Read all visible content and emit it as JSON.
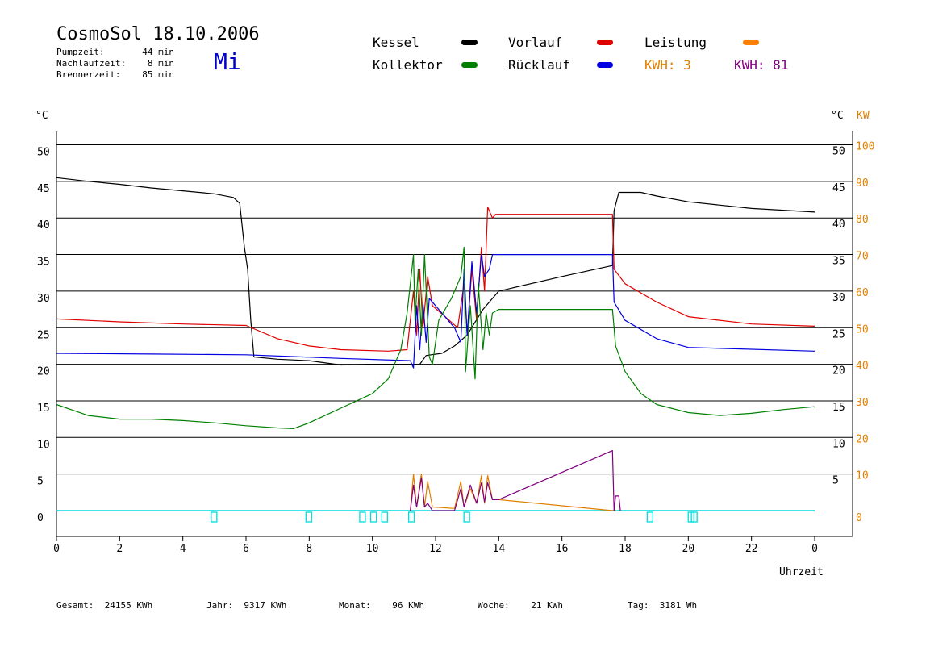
{
  "header": {
    "title": "CosmoSol 18.10.2006",
    "day": "Mi",
    "stats": [
      {
        "label": "Pumpzeit:",
        "value": "44 min"
      },
      {
        "label": "Nachlaufzeit:",
        "value": "8 min"
      },
      {
        "label": "Brennerzeit:",
        "value": "85 min"
      }
    ]
  },
  "legend": {
    "items": [
      {
        "label": "Kessel",
        "color": "#000000"
      },
      {
        "label": "Vorlauf",
        "color": "#e00000"
      },
      {
        "label": "Leistung",
        "color": "#ff8000"
      },
      {
        "label": "Kollektor",
        "color": "#008000"
      },
      {
        "label": "Rücklauf",
        "color": "#0000e0"
      }
    ],
    "kwh_orange": "KWH: 3",
    "kwh_purple": "KWH: 81",
    "orange_color": "#e08000",
    "purple_color": "#800080"
  },
  "axes": {
    "left_unit": "°C",
    "right_unit": "°C",
    "right_unit2": "KW",
    "xlabel": "Uhrzeit"
  },
  "footer": {
    "gesamt": "Gesamt:  24155 KWh",
    "jahr": "Jahr:  9317 KWh",
    "monat": "Monat:    96 KWh",
    "woche": "Woche:    21 KWh",
    "tag": "Tag:  3181 Wh"
  },
  "chart_data": {
    "type": "line",
    "title": "CosmoSol 18.10.2006",
    "xlabel": "Uhrzeit",
    "ylabel": "°C",
    "xlim": [
      0,
      24
    ],
    "ylim": [
      0,
      55
    ],
    "y2lim": [
      0,
      110
    ],
    "x_ticks": [
      "0",
      "2",
      "4",
      "6",
      "8",
      "10",
      "12",
      "14",
      "16",
      "18",
      "20",
      "22",
      "0"
    ],
    "y_ticks": [
      "0",
      "5",
      "10",
      "15",
      "20",
      "25",
      "30",
      "35",
      "40",
      "45",
      "50"
    ],
    "y2_ticks": [
      "0",
      "10",
      "20",
      "30",
      "40",
      "50",
      "60",
      "70",
      "80",
      "90",
      "100"
    ],
    "grid": true,
    "series": [
      {
        "name": "Kessel",
        "color": "#000000",
        "points": [
          [
            0,
            45.5
          ],
          [
            1,
            45
          ],
          [
            2,
            44.6
          ],
          [
            3,
            44.1
          ],
          [
            4,
            43.7
          ],
          [
            5,
            43.3
          ],
          [
            5.6,
            42.8
          ],
          [
            5.8,
            42
          ],
          [
            5.95,
            36
          ],
          [
            6.05,
            33
          ],
          [
            6.15,
            26
          ],
          [
            6.25,
            21
          ],
          [
            7,
            20.7
          ],
          [
            8,
            20.5
          ],
          [
            9,
            19.9
          ],
          [
            10,
            20
          ],
          [
            11.2,
            20
          ],
          [
            11.5,
            20
          ],
          [
            11.7,
            21.2
          ],
          [
            12.2,
            21.5
          ],
          [
            12.6,
            22.5
          ],
          [
            13,
            24
          ],
          [
            13.5,
            27.5
          ],
          [
            14,
            30
          ],
          [
            16,
            32
          ],
          [
            17.6,
            33.5
          ],
          [
            17.65,
            41
          ],
          [
            17.8,
            43.5
          ],
          [
            18.5,
            43.5
          ],
          [
            19,
            43
          ],
          [
            20,
            42.2
          ],
          [
            22,
            41.3
          ],
          [
            24,
            40.8
          ]
        ]
      },
      {
        "name": "Vorlauf",
        "color": "#e00000",
        "points": [
          [
            0,
            26.2
          ],
          [
            2,
            25.8
          ],
          [
            4,
            25.5
          ],
          [
            6,
            25.3
          ],
          [
            7,
            23.5
          ],
          [
            8,
            22.5
          ],
          [
            9,
            22
          ],
          [
            10.5,
            21.8
          ],
          [
            11.1,
            22
          ],
          [
            11.3,
            30
          ],
          [
            11.4,
            24
          ],
          [
            11.5,
            33
          ],
          [
            11.6,
            25
          ],
          [
            11.75,
            32
          ],
          [
            11.9,
            28
          ],
          [
            12.3,
            26.5
          ],
          [
            12.7,
            25
          ],
          [
            12.9,
            31
          ],
          [
            13,
            24
          ],
          [
            13.15,
            33
          ],
          [
            13.3,
            26
          ],
          [
            13.45,
            36
          ],
          [
            13.55,
            30
          ],
          [
            13.65,
            41.5
          ],
          [
            13.8,
            40
          ],
          [
            13.9,
            40.5
          ],
          [
            14,
            40.5
          ],
          [
            17.6,
            40.5
          ],
          [
            17.65,
            33
          ],
          [
            18,
            31
          ],
          [
            19,
            28.5
          ],
          [
            20,
            26.5
          ],
          [
            22,
            25.5
          ],
          [
            24,
            25.2
          ]
        ]
      },
      {
        "name": "Rücklauf",
        "color": "#0000e0",
        "points": [
          [
            0,
            21.5
          ],
          [
            3,
            21.4
          ],
          [
            6,
            21.3
          ],
          [
            9,
            20.8
          ],
          [
            11.2,
            20.5
          ],
          [
            11.3,
            19.5
          ],
          [
            11.4,
            28
          ],
          [
            11.5,
            22
          ],
          [
            11.6,
            28.5
          ],
          [
            11.7,
            23
          ],
          [
            11.8,
            29
          ],
          [
            12.2,
            27
          ],
          [
            12.6,
            25
          ],
          [
            12.8,
            23
          ],
          [
            12.9,
            33
          ],
          [
            13,
            24
          ],
          [
            13.15,
            34
          ],
          [
            13.3,
            27
          ],
          [
            13.45,
            35
          ],
          [
            13.55,
            32
          ],
          [
            13.7,
            33
          ],
          [
            13.8,
            35
          ],
          [
            14,
            35
          ],
          [
            17.6,
            35
          ],
          [
            17.65,
            28.5
          ],
          [
            18,
            26
          ],
          [
            19,
            23.5
          ],
          [
            20,
            22.3
          ],
          [
            24,
            21.8
          ]
        ]
      },
      {
        "name": "Kollektor",
        "color": "#008000",
        "points": [
          [
            0,
            14.5
          ],
          [
            1,
            13
          ],
          [
            2,
            12.5
          ],
          [
            3,
            12.5
          ],
          [
            4,
            12.3
          ],
          [
            5,
            12
          ],
          [
            6,
            11.6
          ],
          [
            7,
            11.3
          ],
          [
            7.5,
            11.2
          ],
          [
            8,
            12
          ],
          [
            9,
            14
          ],
          [
            10,
            16
          ],
          [
            10.5,
            18
          ],
          [
            10.9,
            22
          ],
          [
            11.1,
            27
          ],
          [
            11.2,
            31
          ],
          [
            11.3,
            35
          ],
          [
            11.35,
            26
          ],
          [
            11.45,
            33
          ],
          [
            11.55,
            24
          ],
          [
            11.65,
            35
          ],
          [
            11.8,
            21
          ],
          [
            11.9,
            20
          ],
          [
            12.1,
            26
          ],
          [
            12.5,
            29
          ],
          [
            12.8,
            32
          ],
          [
            12.9,
            36
          ],
          [
            12.95,
            19
          ],
          [
            13.1,
            28
          ],
          [
            13.25,
            18
          ],
          [
            13.35,
            31
          ],
          [
            13.5,
            22
          ],
          [
            13.6,
            27
          ],
          [
            13.7,
            24
          ],
          [
            13.8,
            27
          ],
          [
            14,
            27.5
          ],
          [
            17.6,
            27.5
          ],
          [
            17.7,
            22.5
          ],
          [
            18,
            19
          ],
          [
            18.5,
            16
          ],
          [
            19,
            14.5
          ],
          [
            20,
            13.4
          ],
          [
            21,
            13
          ],
          [
            22,
            13.3
          ],
          [
            23,
            13.8
          ],
          [
            24,
            14.2
          ]
        ]
      },
      {
        "name": "Leistung",
        "color": "#e08000",
        "points": [
          [
            11.2,
            0
          ],
          [
            11.3,
            5
          ],
          [
            11.4,
            0.5
          ],
          [
            11.55,
            5
          ],
          [
            11.65,
            0.5
          ],
          [
            11.75,
            4
          ],
          [
            11.9,
            0.5
          ],
          [
            12.6,
            0.3
          ],
          [
            12.8,
            4
          ],
          [
            12.9,
            0.5
          ],
          [
            13.1,
            3
          ],
          [
            13.3,
            1
          ],
          [
            13.45,
            4.8
          ],
          [
            13.55,
            1
          ],
          [
            13.65,
            4.8
          ],
          [
            13.8,
            1.5
          ],
          [
            14,
            1.5
          ],
          [
            17.6,
            0
          ],
          [
            17.7,
            0
          ]
        ]
      },
      {
        "name": "KWH",
        "color": "#800080",
        "points": [
          [
            11.2,
            0
          ],
          [
            11.3,
            3.5
          ],
          [
            11.4,
            0.5
          ],
          [
            11.55,
            4.5
          ],
          [
            11.65,
            0.5
          ],
          [
            11.75,
            1
          ],
          [
            11.9,
            0
          ],
          [
            12.6,
            0
          ],
          [
            12.8,
            3
          ],
          [
            12.9,
            0.5
          ],
          [
            13.1,
            3.5
          ],
          [
            13.3,
            1
          ],
          [
            13.45,
            3.8
          ],
          [
            13.55,
            1.2
          ],
          [
            13.65,
            3.8
          ],
          [
            13.8,
            1.5
          ],
          [
            14,
            1.5
          ],
          [
            17.6,
            8.2
          ],
          [
            17.65,
            0
          ],
          [
            17.7,
            2
          ],
          [
            17.8,
            2
          ],
          [
            17.85,
            0
          ]
        ]
      }
    ],
    "pump_markers": [
      5,
      8,
      9.7,
      10.05,
      10.4,
      11.25,
      13,
      18.8,
      20.1,
      20.2
    ],
    "baseline_color": "#00dddd"
  }
}
